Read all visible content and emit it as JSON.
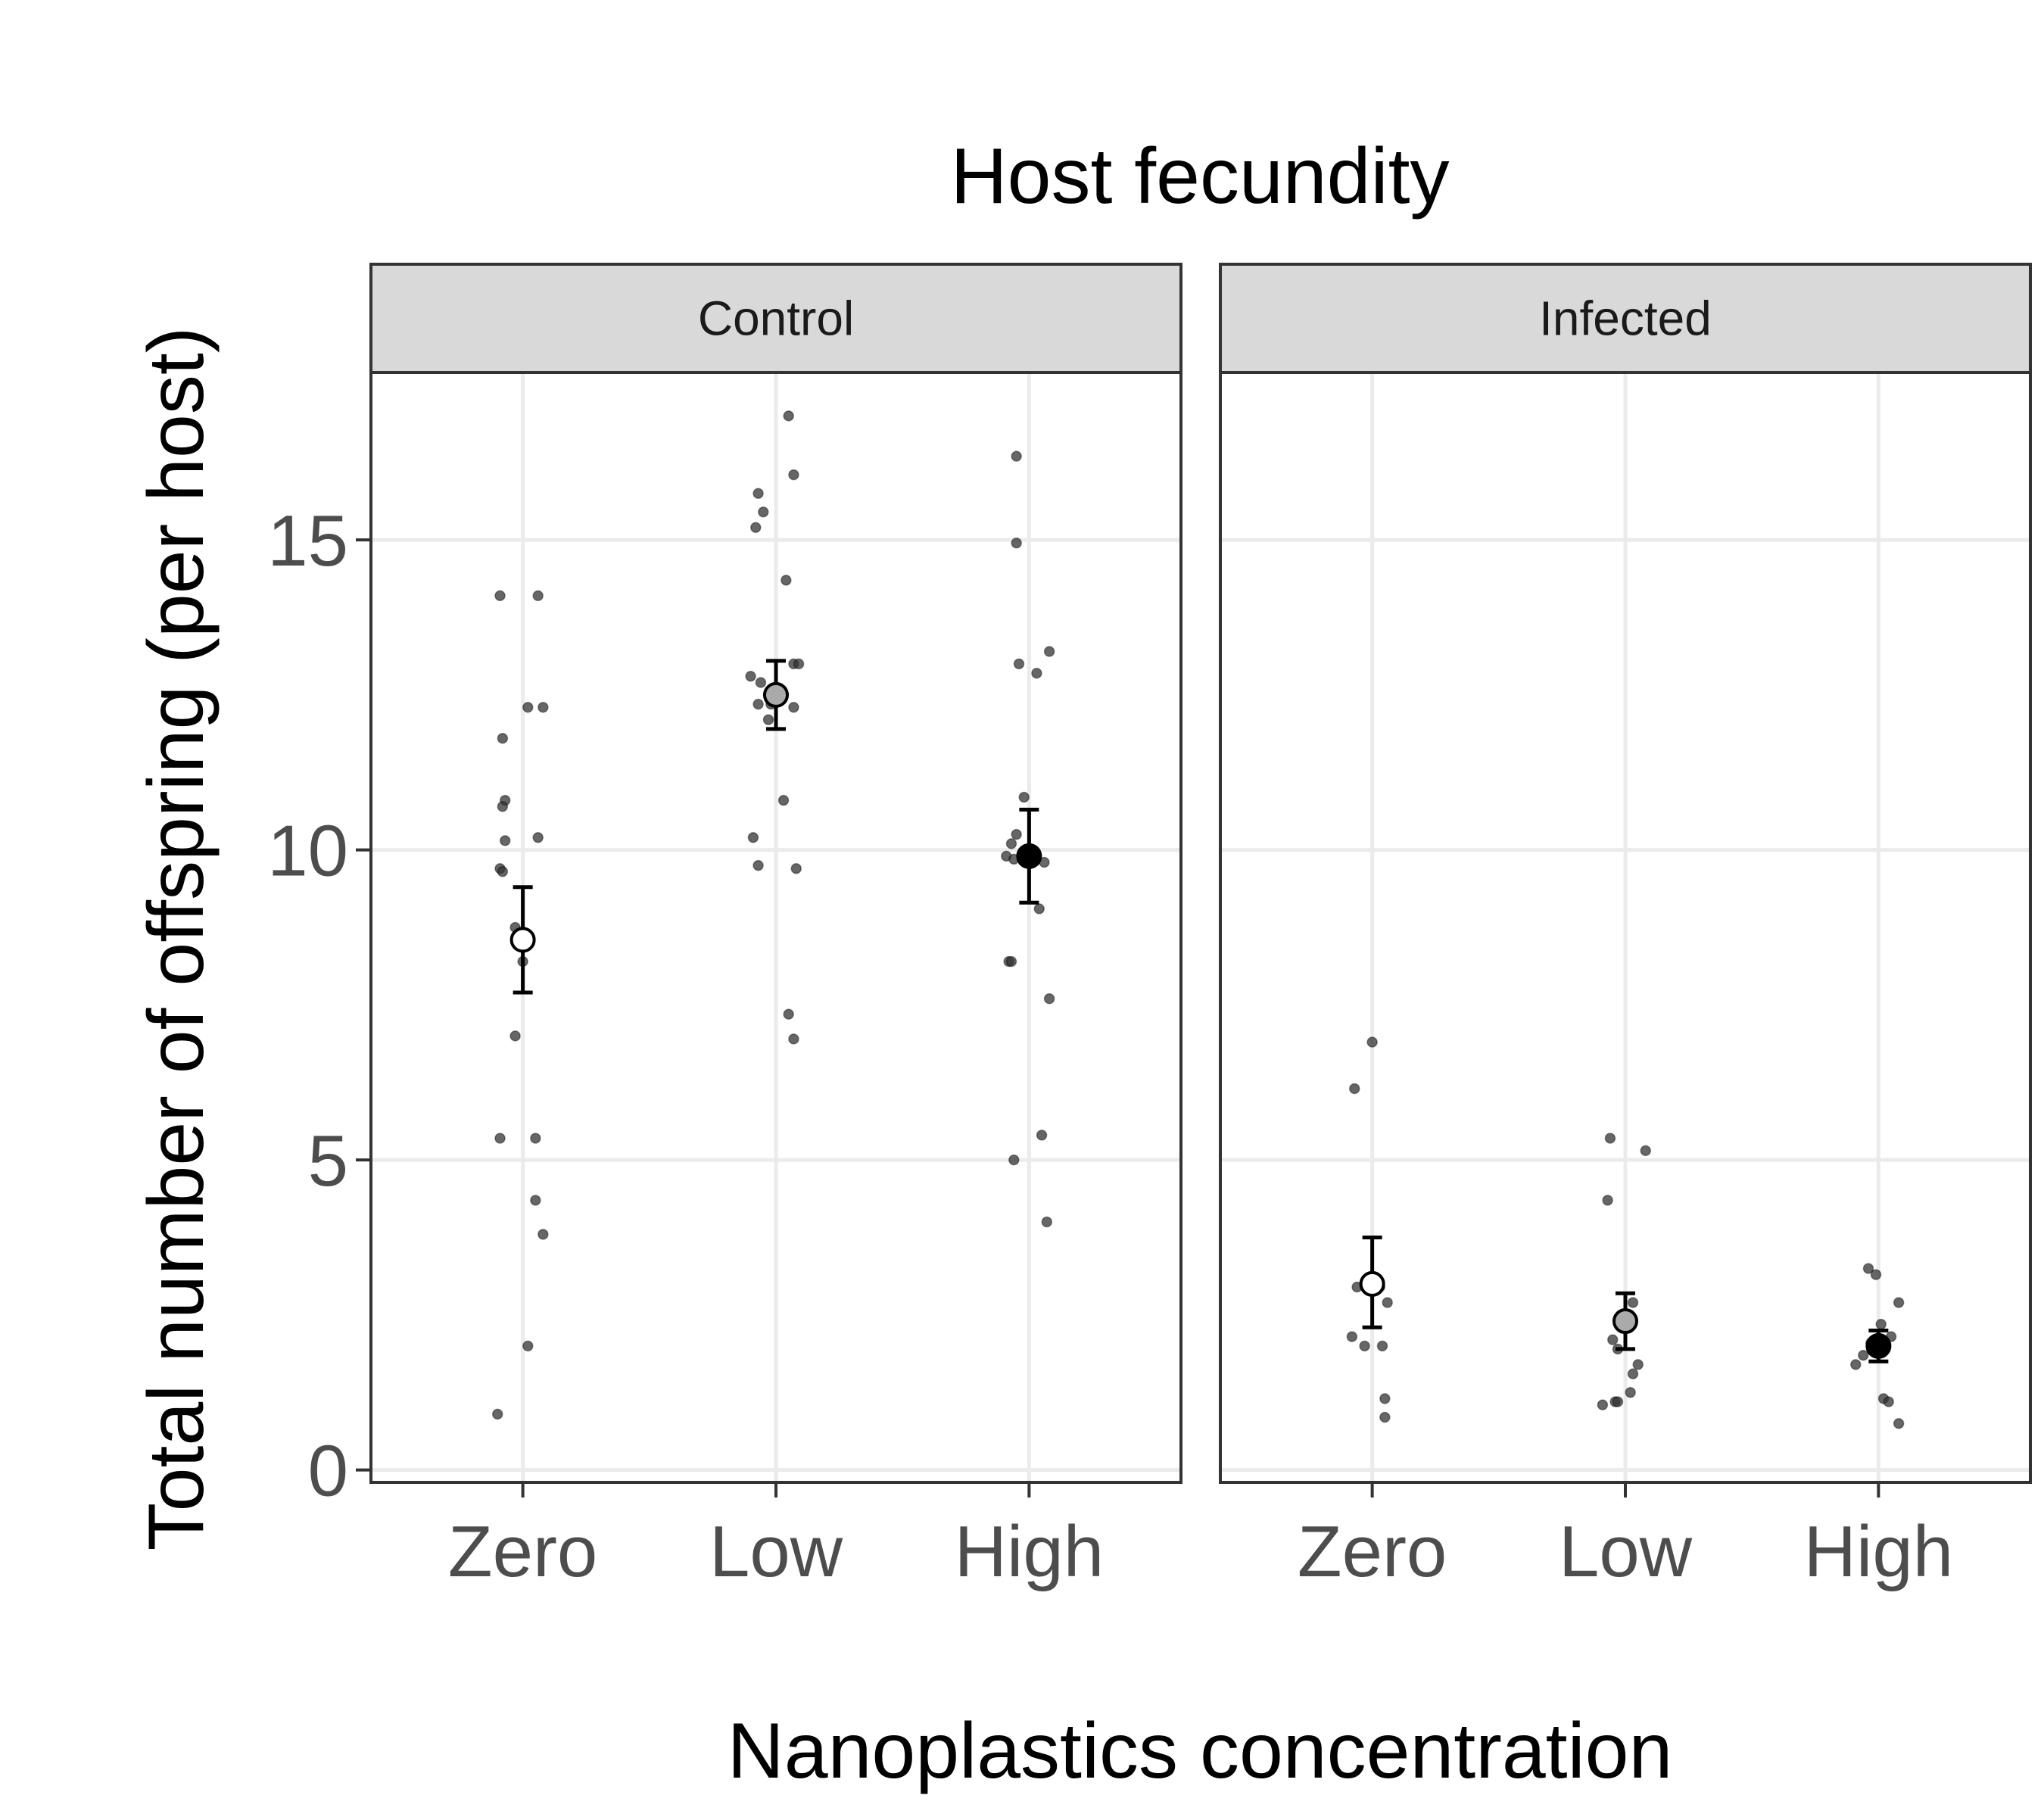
{
  "chart_data": {
    "type": "scatter",
    "title": "Host fecundity",
    "xlabel": "Nanoplastics concentration",
    "ylabel": "Total number of offspring (per host)",
    "categories": [
      "Zero",
      "Low",
      "High"
    ],
    "category_fills": [
      "#ffffff",
      "#aaaaaa",
      "#000000"
    ],
    "y_ticks": [
      0,
      5,
      10,
      15
    ],
    "y_tick_labels": [
      "0",
      "5",
      "10",
      "15"
    ],
    "ylim": [
      -0.2,
      17.7
    ],
    "grid": true,
    "legend": "none",
    "panels": [
      {
        "name": "Control",
        "groups": [
          {
            "category": "Zero",
            "mean": 8.55,
            "ci_low": 7.7,
            "ci_high": 9.4,
            "points": [
              {
                "dx": -0.09,
                "y": 14.1
              },
              {
                "dx": 0.06,
                "y": 14.1
              },
              {
                "dx": 0.02,
                "y": 12.3
              },
              {
                "dx": 0.08,
                "y": 12.3
              },
              {
                "dx": -0.08,
                "y": 11.8
              },
              {
                "dx": -0.07,
                "y": 10.8
              },
              {
                "dx": -0.08,
                "y": 10.7
              },
              {
                "dx": -0.07,
                "y": 10.15
              },
              {
                "dx": 0.06,
                "y": 10.2
              },
              {
                "dx": -0.09,
                "y": 9.7
              },
              {
                "dx": -0.08,
                "y": 9.65
              },
              {
                "dx": -0.03,
                "y": 8.75
              },
              {
                "dx": 0.0,
                "y": 8.2
              },
              {
                "dx": -0.03,
                "y": 7.0
              },
              {
                "dx": -0.09,
                "y": 5.35
              },
              {
                "dx": 0.05,
                "y": 5.35
              },
              {
                "dx": 0.05,
                "y": 4.35
              },
              {
                "dx": 0.08,
                "y": 3.8
              },
              {
                "dx": 0.02,
                "y": 2.0
              },
              {
                "dx": -0.1,
                "y": 0.9
              }
            ]
          },
          {
            "category": "Low",
            "mean": 12.5,
            "ci_low": 11.95,
            "ci_high": 13.05,
            "points": [
              {
                "dx": 0.05,
                "y": 17.0
              },
              {
                "dx": 0.07,
                "y": 16.05
              },
              {
                "dx": -0.07,
                "y": 15.75
              },
              {
                "dx": -0.05,
                "y": 15.45
              },
              {
                "dx": -0.08,
                "y": 15.2
              },
              {
                "dx": 0.04,
                "y": 14.35
              },
              {
                "dx": 0.07,
                "y": 13.0
              },
              {
                "dx": 0.09,
                "y": 13.0
              },
              {
                "dx": -0.1,
                "y": 12.8
              },
              {
                "dx": -0.06,
                "y": 12.7
              },
              {
                "dx": -0.03,
                "y": 12.5
              },
              {
                "dx": 0.03,
                "y": 12.5
              },
              {
                "dx": -0.07,
                "y": 12.35
              },
              {
                "dx": -0.02,
                "y": 12.35
              },
              {
                "dx": 0.07,
                "y": 12.3
              },
              {
                "dx": -0.03,
                "y": 12.1
              },
              {
                "dx": 0.03,
                "y": 10.8
              },
              {
                "dx": -0.09,
                "y": 10.2
              },
              {
                "dx": 0.08,
                "y": 9.7
              },
              {
                "dx": -0.07,
                "y": 9.75
              },
              {
                "dx": 0.05,
                "y": 7.35
              },
              {
                "dx": 0.07,
                "y": 6.95
              }
            ]
          },
          {
            "category": "High",
            "mean": 9.9,
            "ci_low": 9.15,
            "ci_high": 10.65,
            "points": [
              {
                "dx": -0.05,
                "y": 16.35
              },
              {
                "dx": -0.05,
                "y": 14.95
              },
              {
                "dx": 0.08,
                "y": 13.2
              },
              {
                "dx": -0.04,
                "y": 13.0
              },
              {
                "dx": 0.03,
                "y": 12.85
              },
              {
                "dx": -0.02,
                "y": 10.85
              },
              {
                "dx": -0.05,
                "y": 10.25
              },
              {
                "dx": -0.07,
                "y": 10.1
              },
              {
                "dx": -0.09,
                "y": 9.9
              },
              {
                "dx": -0.06,
                "y": 9.85
              },
              {
                "dx": 0.06,
                "y": 9.8
              },
              {
                "dx": 0.04,
                "y": 9.05
              },
              {
                "dx": -0.08,
                "y": 8.2
              },
              {
                "dx": -0.07,
                "y": 8.2
              },
              {
                "dx": 0.08,
                "y": 7.6
              },
              {
                "dx": 0.05,
                "y": 5.4
              },
              {
                "dx": -0.06,
                "y": 5.0
              },
              {
                "dx": 0.07,
                "y": 4.0
              }
            ]
          }
        ]
      },
      {
        "name": "Infected",
        "groups": [
          {
            "category": "Zero",
            "mean": 3.0,
            "ci_low": 2.3,
            "ci_high": 3.75,
            "points": [
              {
                "dx": 0.0,
                "y": 6.9
              },
              {
                "dx": -0.07,
                "y": 6.15
              },
              {
                "dx": -0.06,
                "y": 2.95
              },
              {
                "dx": 0.03,
                "y": 2.95
              },
              {
                "dx": 0.06,
                "y": 2.7
              },
              {
                "dx": -0.08,
                "y": 2.15
              },
              {
                "dx": -0.03,
                "y": 2.0
              },
              {
                "dx": 0.04,
                "y": 2.0
              },
              {
                "dx": 0.05,
                "y": 1.15
              },
              {
                "dx": 0.05,
                "y": 0.85
              }
            ]
          },
          {
            "category": "Low",
            "mean": 2.4,
            "ci_low": 1.95,
            "ci_high": 2.85,
            "points": [
              {
                "dx": -0.06,
                "y": 5.35
              },
              {
                "dx": 0.08,
                "y": 5.15
              },
              {
                "dx": -0.07,
                "y": 4.35
              },
              {
                "dx": 0.03,
                "y": 2.7
              },
              {
                "dx": -0.05,
                "y": 2.1
              },
              {
                "dx": -0.03,
                "y": 1.95
              },
              {
                "dx": 0.05,
                "y": 1.7
              },
              {
                "dx": 0.03,
                "y": 1.55
              },
              {
                "dx": 0.02,
                "y": 1.25
              },
              {
                "dx": -0.09,
                "y": 1.05
              },
              {
                "dx": -0.04,
                "y": 1.1
              },
              {
                "dx": -0.03,
                "y": 1.1
              }
            ]
          },
          {
            "category": "High",
            "mean": 2.0,
            "ci_low": 1.75,
            "ci_high": 2.25,
            "points": [
              {
                "dx": -0.04,
                "y": 3.25
              },
              {
                "dx": -0.01,
                "y": 3.15
              },
              {
                "dx": 0.08,
                "y": 2.7
              },
              {
                "dx": 0.01,
                "y": 2.35
              },
              {
                "dx": 0.05,
                "y": 2.15
              },
              {
                "dx": -0.03,
                "y": 2.05
              },
              {
                "dx": -0.06,
                "y": 1.85
              },
              {
                "dx": -0.09,
                "y": 1.7
              },
              {
                "dx": 0.02,
                "y": 1.15
              },
              {
                "dx": 0.04,
                "y": 1.1
              },
              {
                "dx": 0.08,
                "y": 0.75
              }
            ]
          }
        ]
      }
    ]
  }
}
